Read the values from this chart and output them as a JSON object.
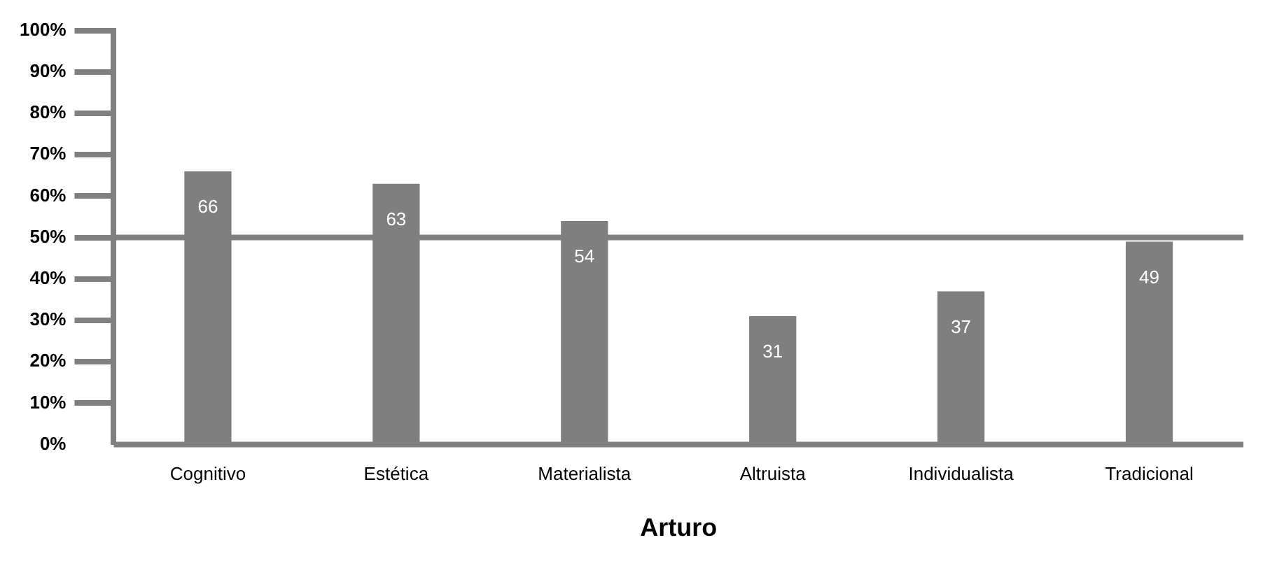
{
  "chart_data": {
    "type": "bar",
    "xlabel": "Arturo",
    "categories": [
      "Cognitivo",
      "Estética",
      "Materialista",
      "Altruista",
      "Individualista",
      "Tradicional"
    ],
    "values": [
      66,
      63,
      54,
      31,
      37,
      49
    ],
    "color": "#7f7f7f",
    "data_labels": true,
    "ylim": [
      0,
      100
    ],
    "yticks": [
      {
        "value": 0,
        "label": "0%"
      },
      {
        "value": 10,
        "label": "10%"
      },
      {
        "value": 20,
        "label": "20%"
      },
      {
        "value": 30,
        "label": "30%"
      },
      {
        "value": 40,
        "label": "40%"
      },
      {
        "value": 50,
        "label": "50%"
      },
      {
        "value": 60,
        "label": "60%"
      },
      {
        "value": 70,
        "label": "70%"
      },
      {
        "value": 80,
        "label": "80%"
      },
      {
        "value": 90,
        "label": "90%"
      },
      {
        "value": 100,
        "label": "100%"
      }
    ],
    "ref_lines": [
      {
        "axis": "y",
        "value": 50,
        "color": "#808080"
      }
    ],
    "grid": false,
    "legend": false
  }
}
